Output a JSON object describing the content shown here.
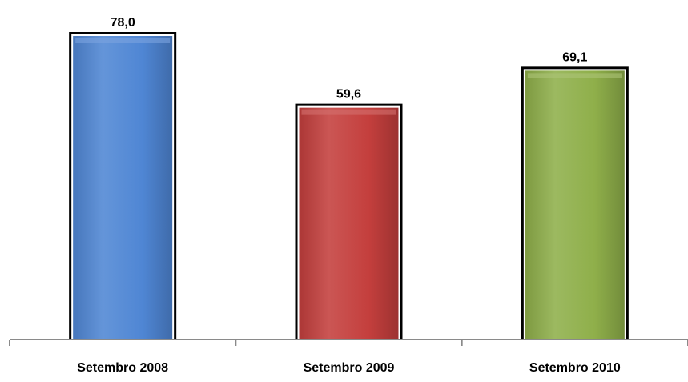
{
  "chart_data": {
    "type": "bar",
    "categories": [
      "Setembro 2008",
      "Setembro 2009",
      "Setembro 2010"
    ],
    "values": [
      78.0,
      59.6,
      69.1
    ],
    "value_labels": [
      "78,0",
      "59,6",
      "69,1"
    ],
    "bar_colors": [
      "#4f86d4",
      "#c43f3d",
      "#8faf4a"
    ],
    "title": "",
    "xlabel": "",
    "ylabel": "",
    "ylim": [
      0,
      78.0
    ],
    "grid": false,
    "legend": "none"
  }
}
